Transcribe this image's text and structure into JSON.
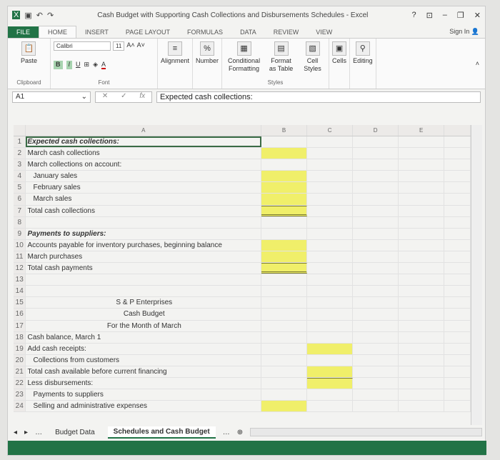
{
  "window": {
    "title": "Cash Budget with Supporting Cash Collections and Disbursements Schedules - Excel",
    "help": "?",
    "sign_in": "Sign In"
  },
  "tabs": [
    "FILE",
    "HOME",
    "INSERT",
    "PAGE LAYOUT",
    "FORMULAS",
    "DATA",
    "REVIEW",
    "VIEW"
  ],
  "ribbon": {
    "paste": "Paste",
    "clipboard": "Clipboard",
    "font_name": "Calibri",
    "font_size": "11",
    "font": "Font",
    "bold": "B",
    "italic": "I",
    "underline": "U",
    "alignment": "Alignment",
    "number": "Number",
    "conditional": "Conditional Formatting",
    "format_table": "Format as Table",
    "cell_styles": "Cell Styles",
    "styles": "Styles",
    "cells": "Cells",
    "editing": "Editing"
  },
  "formula_bar": {
    "name_box": "A1",
    "fx": "fx",
    "value": "Expected cash collections:"
  },
  "columns": [
    "A",
    "B",
    "C",
    "D",
    "E"
  ],
  "rows": [
    {
      "n": "1",
      "a": "Expected cash collections:"
    },
    {
      "n": "2",
      "a": "March cash collections"
    },
    {
      "n": "3",
      "a": "March collections on account:"
    },
    {
      "n": "4",
      "a": "January sales"
    },
    {
      "n": "5",
      "a": "February sales"
    },
    {
      "n": "6",
      "a": "March sales"
    },
    {
      "n": "7",
      "a": "Total cash collections"
    },
    {
      "n": "8",
      "a": ""
    },
    {
      "n": "9",
      "a": "Payments to suppliers:"
    },
    {
      "n": "10",
      "a": "Accounts payable for inventory purchases, beginning balance"
    },
    {
      "n": "11",
      "a": "March purchases"
    },
    {
      "n": "12",
      "a": "Total cash payments"
    },
    {
      "n": "13",
      "a": ""
    },
    {
      "n": "14",
      "a": ""
    },
    {
      "n": "15",
      "a": "S & P Enterprises"
    },
    {
      "n": "16",
      "a": "Cash Budget"
    },
    {
      "n": "17",
      "a": "For the Month of March"
    },
    {
      "n": "18",
      "a": "Cash balance, March 1"
    },
    {
      "n": "19",
      "a": "Add cash receipts:"
    },
    {
      "n": "20",
      "a": "Collections from customers"
    },
    {
      "n": "21",
      "a": "Total cash available before current financing"
    },
    {
      "n": "22",
      "a": "Less disbursements:"
    },
    {
      "n": "23",
      "a": "Payments to suppliers"
    },
    {
      "n": "24",
      "a": "Selling and administrative expenses"
    }
  ],
  "sheets": [
    "Budget Data",
    "Schedules and Cash Budget"
  ],
  "colors": {
    "accent": "#217346",
    "input_cell": "#f0ef6a"
  }
}
